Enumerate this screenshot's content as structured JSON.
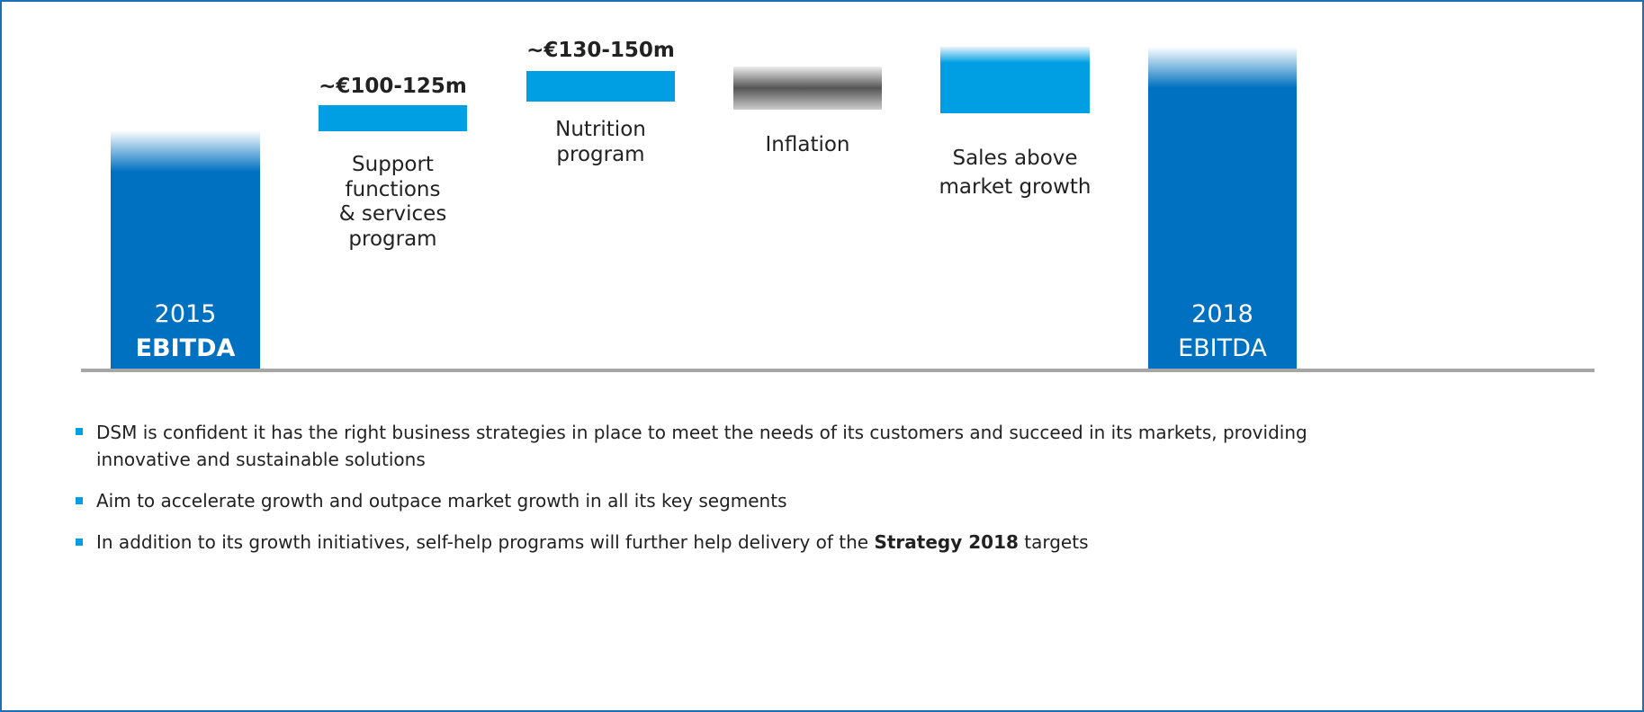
{
  "steps": [
    {
      "label": [
        "2015",
        "EBITDA"
      ]
    },
    {
      "annotation": "~€100-125m",
      "label": [
        "Support",
        "functions",
        "& services",
        "program"
      ]
    },
    {
      "annotation": "~€130-150m",
      "label": [
        "Nutrition",
        "program"
      ]
    },
    {
      "label": [
        "Inflation"
      ]
    },
    {
      "label": [
        "Sales above",
        "market growth"
      ]
    },
    {
      "label": [
        "2018",
        "EBITDA"
      ]
    }
  ],
  "bullets": [
    [
      "DSM is confident it has the right business strategies in place to meet the needs of its customers and succeed in its markets, providing innovative and sustainable solutions"
    ],
    [
      "Aim to accelerate growth and outpace market growth in all its key segments"
    ],
    [
      "In addition to its growth initiatives, self-help programs will further help delivery of the ",
      "Strategy 2018",
      " targets"
    ]
  ]
}
